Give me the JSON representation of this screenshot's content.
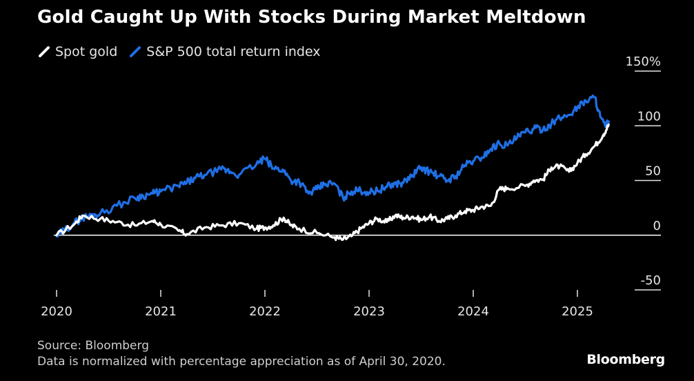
{
  "title": "Gold Caught Up With Stocks During Market Meltdown",
  "source": "Source: Bloomberg",
  "note": "Data is normalized with percentage appreciation as of April 30, 2020.",
  "brand": "Bloomberg",
  "chart_data": {
    "type": "line",
    "title": "Gold Caught Up With Stocks During Market Meltdown",
    "xlabel": "",
    "ylabel": "",
    "xlim": [
      2020.0,
      2025.5
    ],
    "ylim": [
      -50,
      150
    ],
    "x_ticks": [
      2020,
      2021,
      2022,
      2023,
      2024,
      2025
    ],
    "x_tick_labels": [
      "2020",
      "2021",
      "2022",
      "2023",
      "2024",
      "2025"
    ],
    "y_ticks": [
      150,
      100,
      50,
      0,
      -50
    ],
    "y_tick_labels": [
      "150%",
      "100",
      "50",
      "0",
      "-50"
    ],
    "zero_line": 0,
    "legend": "top-left",
    "series": [
      {
        "name": "Spot gold",
        "color": "#ffffff",
        "x": [
          2020.0,
          2020.17,
          2020.25,
          2020.42,
          2020.58,
          2020.75,
          2020.92,
          2021.0,
          2021.17,
          2021.25,
          2021.42,
          2021.58,
          2021.75,
          2021.92,
          2022.0,
          2022.08,
          2022.18,
          2022.25,
          2022.33,
          2022.5,
          2022.67,
          2022.75,
          2022.83,
          2022.92,
          2023.0,
          2023.08,
          2023.17,
          2023.25,
          2023.33,
          2023.42,
          2023.5,
          2023.58,
          2023.67,
          2023.75,
          2023.83,
          2023.92,
          2024.0,
          2024.08,
          2024.17,
          2024.25,
          2024.33,
          2024.5,
          2024.58,
          2024.67,
          2024.75,
          2024.83,
          2024.92,
          2025.0,
          2025.08,
          2025.17,
          2025.25,
          2025.3
        ],
        "y": [
          0,
          10,
          18,
          15,
          12,
          9,
          13,
          10,
          4,
          1,
          7,
          9,
          11,
          6,
          7,
          9,
          16,
          9,
          6,
          2,
          -2,
          -4,
          -1,
          6,
          11,
          15,
          12,
          18,
          16,
          17,
          14,
          17,
          13,
          15,
          18,
          22,
          23,
          26,
          27,
          42,
          43,
          45,
          50,
          51,
          62,
          63,
          58,
          66,
          74,
          82,
          92,
          101
        ]
      },
      {
        "name": "S&P 500 total return index",
        "color": "#1f6fe5",
        "x": [
          2020.0,
          2020.08,
          2020.17,
          2020.25,
          2020.33,
          2020.42,
          2020.58,
          2020.75,
          2020.83,
          2020.92,
          2021.0,
          2021.17,
          2021.25,
          2021.33,
          2021.42,
          2021.58,
          2021.67,
          2021.75,
          2021.92,
          2022.0,
          2022.08,
          2022.17,
          2022.25,
          2022.33,
          2022.42,
          2022.5,
          2022.58,
          2022.67,
          2022.75,
          2022.83,
          2022.92,
          2023.0,
          2023.08,
          2023.17,
          2023.25,
          2023.33,
          2023.42,
          2023.5,
          2023.58,
          2023.67,
          2023.75,
          2023.83,
          2023.92,
          2024.0,
          2024.08,
          2024.17,
          2024.25,
          2024.33,
          2024.42,
          2024.5,
          2024.58,
          2024.67,
          2024.75,
          2024.83,
          2024.92,
          2025.0,
          2025.08,
          2025.17,
          2025.22,
          2025.27,
          2025.3
        ],
        "y": [
          -1,
          5,
          11,
          16,
          18,
          20,
          27,
          34,
          36,
          38,
          40,
          45,
          48,
          52,
          55,
          60,
          58,
          55,
          65,
          70,
          61,
          60,
          50,
          49,
          38,
          42,
          47,
          47,
          34,
          40,
          41,
          39,
          41,
          44,
          47,
          48,
          55,
          62,
          58,
          54,
          50,
          54,
          64,
          68,
          71,
          79,
          84,
          82,
          89,
          94,
          97,
          97,
          102,
          107,
          110,
          117,
          123,
          126,
          108,
          99,
          104
        ]
      }
    ]
  }
}
